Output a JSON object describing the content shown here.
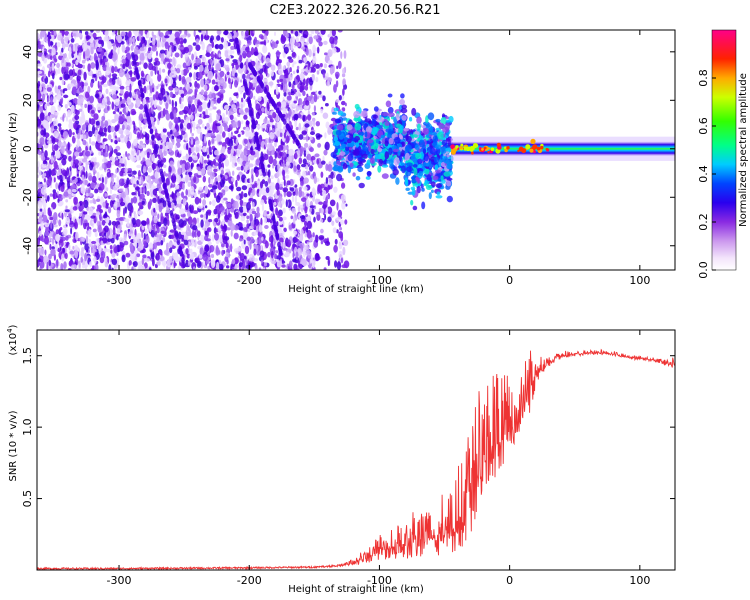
{
  "title": "C2E3.2022.326.20.56.R21",
  "colors": {
    "line": "#ee3333",
    "points": "#7a1ee8",
    "frame": "#000000"
  },
  "chart_data": [
    {
      "type": "heatmap",
      "xlabel": "Height of straight line (km)",
      "ylabel": "Frequency (Hz)",
      "xlim": [
        -363,
        127
      ],
      "ylim": [
        -50,
        49
      ],
      "xticks": [
        -300,
        -200,
        -100,
        0,
        100
      ],
      "yticks": [
        -40,
        -20,
        0,
        20,
        40
      ],
      "colorbar": {
        "label": "Normalized spectral amplitude",
        "range": [
          0.0,
          1.0
        ],
        "ticks": [
          "0.0",
          "0.2",
          "0.4",
          "0.6",
          "0.8"
        ],
        "colormap": "rainbow (white-violet-blue-cyan-green-yellow-red-magenta)"
      },
      "description_regions": {
        "noise_region_x": [
          -363,
          -135
        ],
        "transition_x": [
          -135,
          -45
        ],
        "signal_band_x": [
          -45,
          127
        ],
        "signal_frequency": 0
      }
    },
    {
      "type": "line",
      "xlabel": "Height of straight line (km)",
      "ylabel": "SNR (10 * v/v)",
      "multiplier": "(x10",
      "multiplier_exp": "4",
      "multiplier_close": ")",
      "xlim": [
        -363,
        127
      ],
      "ylim": [
        0,
        1.68
      ],
      "xticks": [
        -300,
        -200,
        -100,
        0,
        100
      ],
      "yticks": [
        "0.5",
        "1.0",
        "1.5"
      ],
      "ytick_values": [
        0.5,
        1.0,
        1.5
      ],
      "profile_x": [
        -363,
        -300,
        -200,
        -150,
        -130,
        -120,
        -100,
        -80,
        -60,
        -40,
        -30,
        -20,
        -10,
        0,
        10,
        15,
        20,
        30,
        40,
        50,
        60,
        70,
        80,
        90,
        100,
        110,
        120,
        127
      ],
      "profile_y": [
        0.01,
        0.01,
        0.015,
        0.02,
        0.03,
        0.05,
        0.13,
        0.18,
        0.22,
        0.3,
        0.55,
        0.8,
        0.9,
        1.0,
        1.15,
        1.25,
        1.35,
        1.45,
        1.5,
        1.51,
        1.52,
        1.52,
        1.51,
        1.49,
        1.48,
        1.47,
        1.45,
        1.43
      ],
      "spike_amplitude": [
        0,
        0,
        0,
        0,
        0.01,
        0.03,
        0.12,
        0.2,
        0.25,
        0.4,
        0.6,
        0.6,
        0.5,
        0.35,
        0.3,
        0.35,
        0.15,
        0.05,
        0.03,
        0.02,
        0.02,
        0.02,
        0.02,
        0.02,
        0.02,
        0.02,
        0.03,
        0.06
      ]
    }
  ]
}
